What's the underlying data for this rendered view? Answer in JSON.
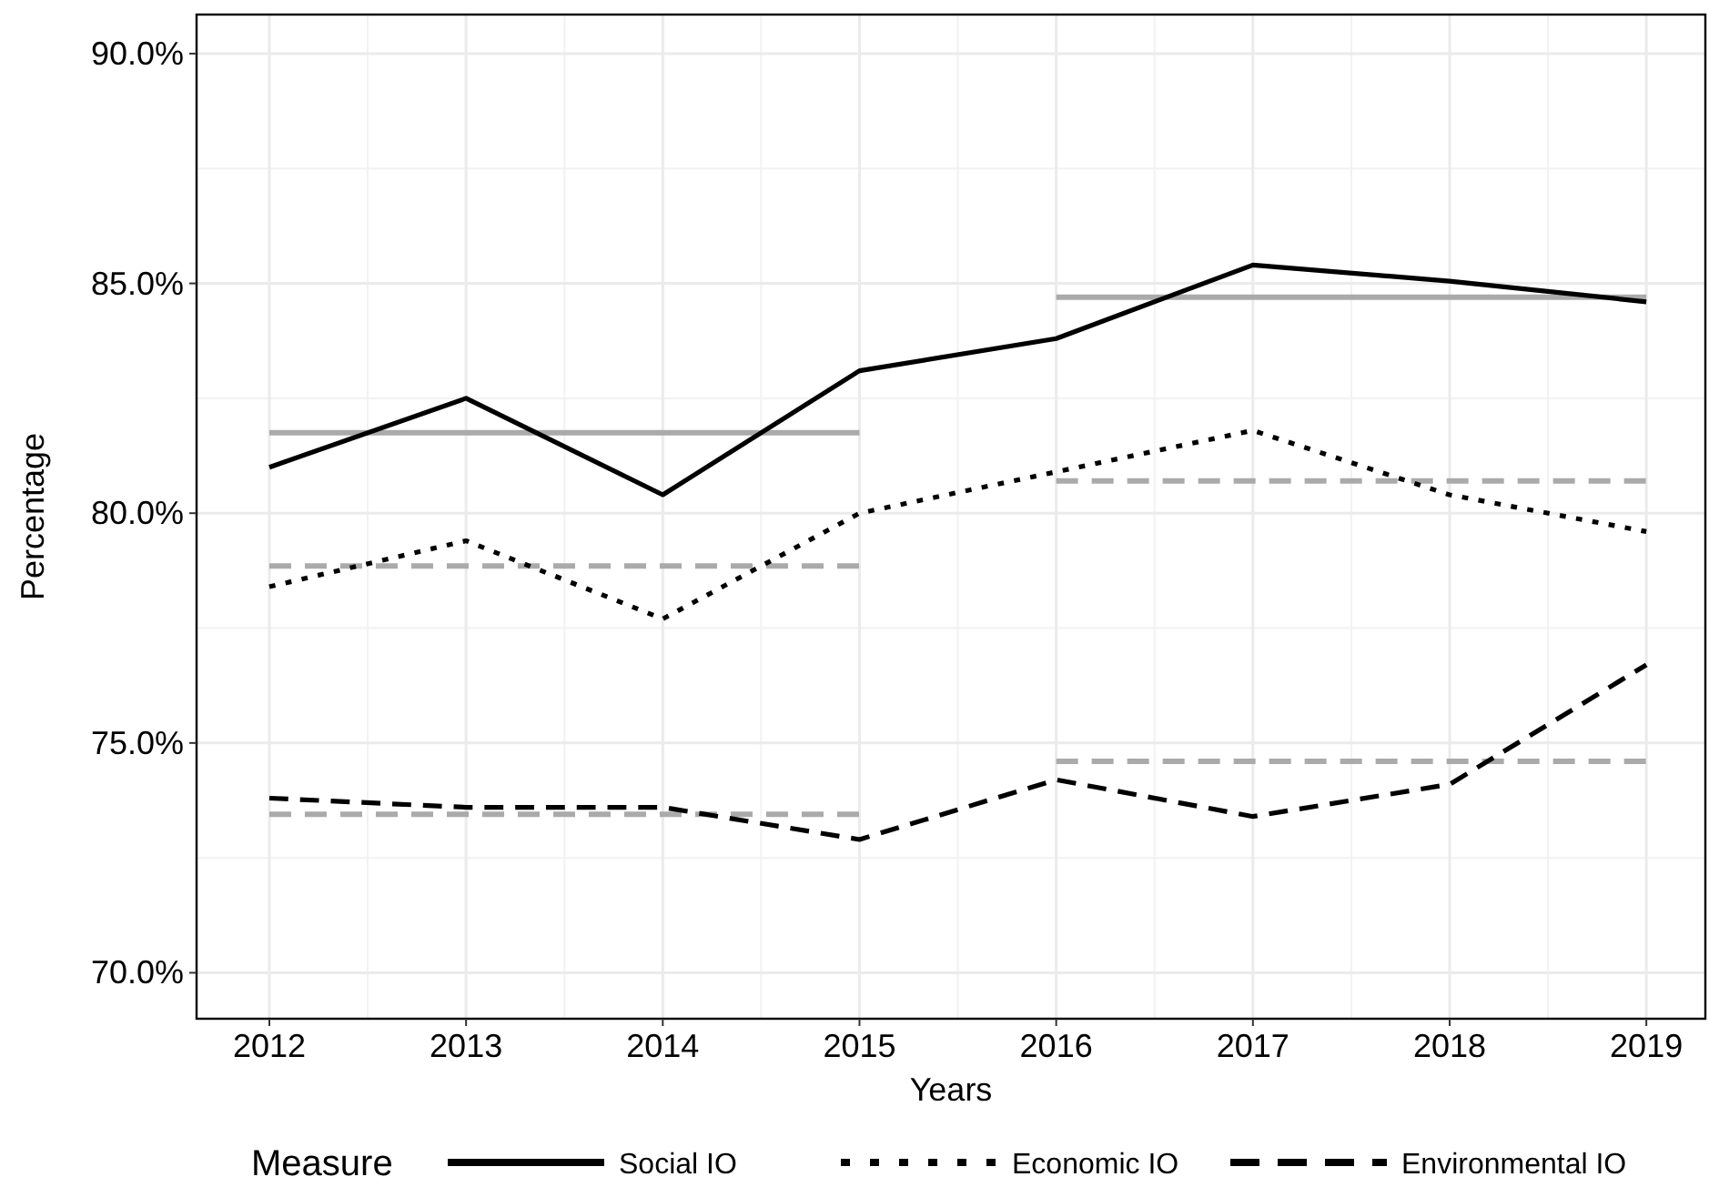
{
  "chart_data": {
    "type": "line",
    "xlabel": "Years",
    "ylabel": "Percentage",
    "legend_title": "Measure",
    "legend": "bottom",
    "grid": true,
    "x": [
      2012,
      2013,
      2014,
      2015,
      2016,
      2017,
      2018,
      2019
    ],
    "xlim": [
      2011.63,
      2019.3
    ],
    "xticks": [
      2012,
      2013,
      2014,
      2015,
      2016,
      2017,
      2018,
      2019
    ],
    "ylim": [
      69.0,
      90.85
    ],
    "yticks": [
      {
        "value": 70,
        "label": "70.0%"
      },
      {
        "value": 75,
        "label": "75.0%"
      },
      {
        "value": 80,
        "label": "80.0%"
      },
      {
        "value": 85,
        "label": "85.0%"
      },
      {
        "value": 90,
        "label": "90.0%"
      }
    ],
    "series": [
      {
        "name": "Social IO",
        "color": "#000000",
        "line_style": "solid",
        "values": [
          81.0,
          82.5,
          80.4,
          83.1,
          83.8,
          85.4,
          85.05,
          84.6
        ]
      },
      {
        "name": "Economic IO",
        "color": "#000000",
        "line_style": "dotted",
        "values": [
          78.4,
          79.4,
          77.7,
          80.0,
          80.9,
          81.8,
          80.4,
          79.6
        ]
      },
      {
        "name": "Environmental IO",
        "color": "#000000",
        "line_style": "dashed",
        "values": [
          73.8,
          73.6,
          73.6,
          72.9,
          74.2,
          73.4,
          74.1,
          76.7
        ]
      },
      {
        "color": "#aaaaaa",
        "line_style": "solid",
        "x": [
          2012,
          2015
        ],
        "values": [
          81.75,
          81.75
        ]
      },
      {
        "color": "#aaaaaa",
        "line_style": "solid",
        "x": [
          2016,
          2019
        ],
        "values": [
          84.7,
          84.7
        ]
      },
      {
        "color": "#aaaaaa",
        "line_style": "dashed",
        "x": [
          2012,
          2015
        ],
        "values": [
          78.85,
          78.85
        ]
      },
      {
        "color": "#aaaaaa",
        "line_style": "dashed",
        "x": [
          2016,
          2019
        ],
        "values": [
          80.7,
          80.7
        ]
      },
      {
        "color": "#aaaaaa",
        "line_style": "dashed",
        "x": [
          2012,
          2015
        ],
        "values": [
          73.45,
          73.45
        ]
      },
      {
        "color": "#aaaaaa",
        "line_style": "dashed",
        "x": [
          2016,
          2019
        ],
        "values": [
          74.6,
          74.6
        ]
      }
    ]
  }
}
